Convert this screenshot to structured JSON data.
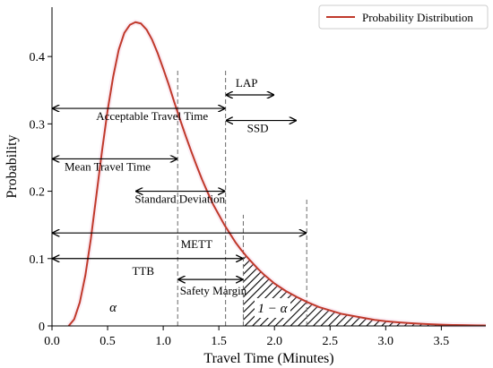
{
  "chart_data": {
    "type": "line",
    "xlabel": "Travel Time (Minutes)",
    "ylabel": "Probability",
    "xlim": [
      0.0,
      3.9
    ],
    "ylim": [
      0.0,
      0.46
    ],
    "xticks": [
      "0.0",
      "0.5",
      "1.0",
      "1.5",
      "2.0",
      "2.5",
      "3.0",
      "3.5"
    ],
    "yticks": [
      "0",
      "0.1",
      "0.2",
      "0.3",
      "0.4"
    ],
    "grid": false,
    "legend_position": "top-right",
    "series": [
      {
        "name": "Probability Distribution",
        "color": "#c0392b",
        "x": [
          0.15,
          0.2,
          0.25,
          0.3,
          0.35,
          0.4,
          0.45,
          0.5,
          0.55,
          0.6,
          0.65,
          0.7,
          0.75,
          0.8,
          0.85,
          0.9,
          0.95,
          1.0,
          1.05,
          1.1,
          1.15,
          1.2,
          1.25,
          1.3,
          1.35,
          1.4,
          1.45,
          1.5,
          1.55,
          1.6,
          1.65,
          1.7,
          1.75,
          1.8,
          1.85,
          1.9,
          1.95,
          2.0,
          2.1,
          2.2,
          2.3,
          2.4,
          2.5,
          2.6,
          2.7,
          2.8,
          2.9,
          3.0,
          3.1,
          3.2,
          3.3,
          3.4,
          3.5,
          3.6,
          3.7,
          3.8,
          3.9
        ],
        "y": [
          0.0,
          0.01,
          0.035,
          0.075,
          0.13,
          0.195,
          0.26,
          0.32,
          0.37,
          0.41,
          0.435,
          0.447,
          0.451,
          0.449,
          0.44,
          0.425,
          0.405,
          0.382,
          0.358,
          0.332,
          0.307,
          0.283,
          0.26,
          0.238,
          0.217,
          0.198,
          0.18,
          0.165,
          0.15,
          0.137,
          0.124,
          0.113,
          0.103,
          0.094,
          0.085,
          0.077,
          0.07,
          0.063,
          0.052,
          0.043,
          0.035,
          0.028,
          0.023,
          0.018,
          0.015,
          0.012,
          0.009,
          0.007,
          0.0055,
          0.0043,
          0.0033,
          0.0025,
          0.0019,
          0.0014,
          0.0011,
          0.0008,
          0.0006
        ]
      }
    ],
    "vlines": [
      1.13,
      1.56,
      1.72,
      2.29
    ],
    "hatched_region": {
      "from": 1.72,
      "to": 3.9
    },
    "annotations": [
      {
        "text": "LAP",
        "arrow": [
          1.56,
          2.0
        ],
        "y": 0.343
      },
      {
        "text": "Acceptable Travel Time",
        "arrow": [
          0.0,
          1.56
        ],
        "y": 0.323
      },
      {
        "text": "SSD",
        "arrow": [
          1.56,
          2.2
        ],
        "y": 0.305
      },
      {
        "text": "Mean Travel Time",
        "arrow": [
          0.0,
          1.13
        ],
        "y": 0.248
      },
      {
        "text": "Standard Deviation",
        "arrow": [
          0.75,
          1.56
        ],
        "y": 0.2
      },
      {
        "text": "METT",
        "arrow": [
          0.0,
          2.29
        ],
        "y": 0.138
      },
      {
        "text": "TTB",
        "arrow": [
          0.0,
          1.72
        ],
        "y": 0.1
      },
      {
        "text": "Safety Margin",
        "arrow": [
          1.13,
          1.72
        ],
        "y": 0.069
      }
    ],
    "region_labels": [
      "α",
      "1 − α"
    ]
  }
}
